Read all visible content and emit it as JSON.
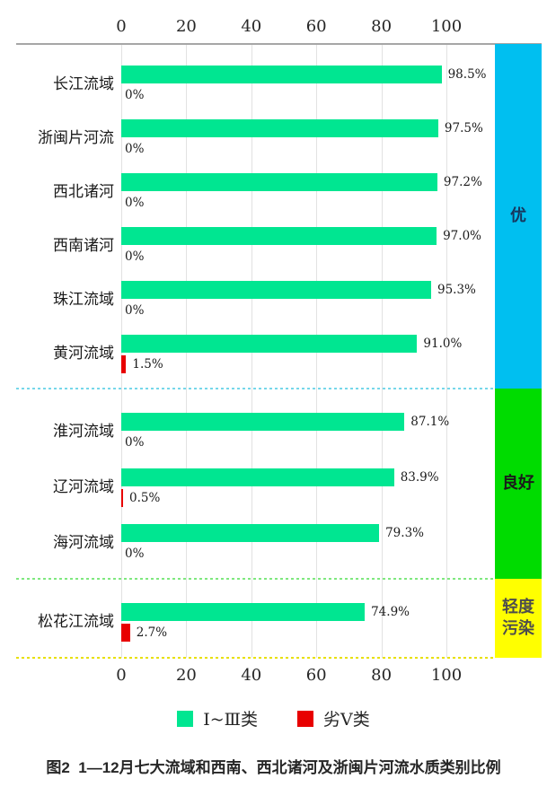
{
  "chart_data": {
    "type": "bar",
    "orientation": "horizontal",
    "x_axis": {
      "tick_labels": [
        "0",
        "20",
        "40",
        "60",
        "80",
        "100"
      ],
      "tick_values": [
        0,
        20,
        40,
        60,
        80,
        100
      ],
      "range": [
        0,
        100
      ],
      "grid": true
    },
    "rows": [
      {
        "label": "长江流域",
        "good": 98.5,
        "good_label": "98.5%",
        "bad": 0,
        "bad_label": "0%",
        "group": "优"
      },
      {
        "label": "浙闽片河流",
        "good": 97.5,
        "good_label": "97.5%",
        "bad": 0,
        "bad_label": "0%",
        "group": "优"
      },
      {
        "label": "西北诸河",
        "good": 97.2,
        "good_label": "97.2%",
        "bad": 0,
        "bad_label": "0%",
        "group": "优"
      },
      {
        "label": "西南诸河",
        "good": 97.0,
        "good_label": "97.0%",
        "bad": 0,
        "bad_label": "0%",
        "group": "优"
      },
      {
        "label": "珠江流域",
        "good": 95.3,
        "good_label": "95.3%",
        "bad": 0,
        "bad_label": "0%",
        "group": "优"
      },
      {
        "label": "黄河流域",
        "good": 91.0,
        "good_label": "91.0%",
        "bad": 1.5,
        "bad_label": "1.5%",
        "group": "优"
      },
      {
        "label": "淮河流域",
        "good": 87.1,
        "good_label": "87.1%",
        "bad": 0,
        "bad_label": "0%",
        "group": "良好"
      },
      {
        "label": "辽河流域",
        "good": 83.9,
        "good_label": "83.9%",
        "bad": 0.5,
        "bad_label": "0.5%",
        "group": "良好"
      },
      {
        "label": "海河流域",
        "good": 79.3,
        "good_label": "79.3%",
        "bad": 0,
        "bad_label": "0%",
        "group": "良好"
      },
      {
        "label": "松花江流域",
        "good": 74.9,
        "good_label": "74.9%",
        "bad": 2.7,
        "bad_label": "2.7%",
        "group": "轻度污染"
      }
    ],
    "groups": [
      {
        "label": "优",
        "lines": [
          "优"
        ],
        "color": "#00bff0",
        "text_color": "#17375e"
      },
      {
        "label": "良好",
        "lines": [
          "良好"
        ],
        "color": "#00dc00",
        "text_color": "#1a1a1a"
      },
      {
        "label": "轻度污染",
        "lines": [
          "轻度",
          "污染"
        ],
        "color": "#ffff00",
        "text_color": "#4d4d4d"
      }
    ],
    "series": [
      {
        "name": "Ⅰ~Ⅲ类",
        "color": "#00e691"
      },
      {
        "name": "劣Ⅴ类",
        "color": "#e80000"
      }
    ],
    "legend": [
      {
        "label": "Ⅰ~Ⅲ类",
        "color": "#00e691"
      },
      {
        "label": "劣Ⅴ类",
        "color": "#e80000"
      }
    ],
    "caption": "图2  1—12月七大流域和西南、西北诸河及浙闽片河流水质类别比例",
    "colors": {
      "good_bar": "#00e691",
      "bad_bar": "#e80000",
      "band_excellent": "#00bff0",
      "band_good": "#00dc00",
      "band_light_pollution": "#ffff00",
      "axis_line": "#a6a6a6",
      "grid_line": "#e2e2e2"
    }
  }
}
